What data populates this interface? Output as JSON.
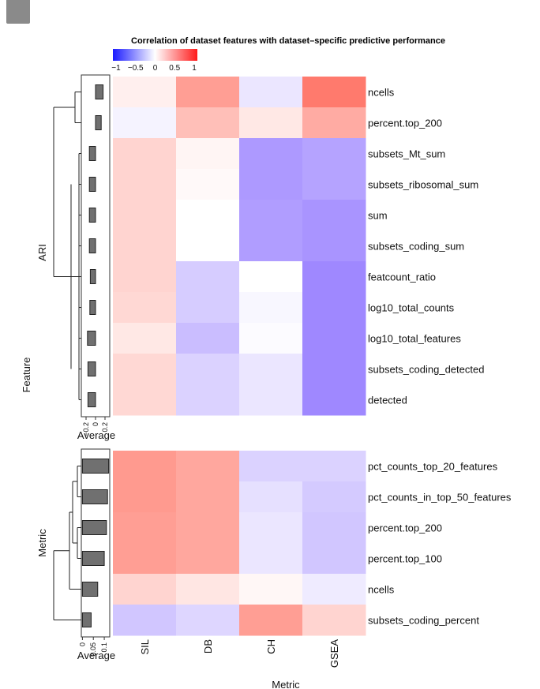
{
  "chart_data": {
    "type": "heatmap",
    "title": "Correlation of dataset features with dataset–specific predictive performance",
    "legend": {
      "ticks": [
        "−1",
        "−0.5",
        "0",
        "0.5",
        "1"
      ],
      "range": [
        -1,
        1
      ],
      "colors": {
        "low": "#1a1aff",
        "mid": "#ffffff",
        "high": "#ff1a1a"
      }
    },
    "columns": [
      "SIL",
      "DB",
      "CH",
      "GSEA"
    ],
    "xlabel": "Metric",
    "ylabel": "Feature",
    "panels": [
      {
        "name": "ARI",
        "rows": [
          {
            "label": "ncells",
            "values": [
              0.08,
              0.5,
              -0.12,
              0.68
            ],
            "average": 0.16
          },
          {
            "label": "percent.top_200",
            "values": [
              -0.06,
              0.33,
              0.12,
              0.43
            ],
            "average": 0.12
          },
          {
            "label": "subsets_Mt_sum",
            "values": [
              0.22,
              0.05,
              -0.5,
              -0.45
            ],
            "average": -0.13
          },
          {
            "label": "subsets_ribosomal_sum",
            "values": [
              0.22,
              0.03,
              -0.5,
              -0.45
            ],
            "average": -0.13
          },
          {
            "label": "sum",
            "values": [
              0.22,
              0.0,
              -0.48,
              -0.52
            ],
            "average": -0.13
          },
          {
            "label": "subsets_coding_sum",
            "values": [
              0.22,
              0.0,
              -0.48,
              -0.52
            ],
            "average": -0.13
          },
          {
            "label": "featcount_ratio",
            "values": [
              0.22,
              -0.25,
              0.0,
              -0.58
            ],
            "average": -0.11
          },
          {
            "label": "log10_total_counts",
            "values": [
              0.2,
              -0.25,
              -0.04,
              -0.58
            ],
            "average": -0.12
          },
          {
            "label": "log10_total_features",
            "values": [
              0.12,
              -0.32,
              -0.02,
              -0.58
            ],
            "average": -0.17
          },
          {
            "label": "subsets_coding_detected",
            "values": [
              0.2,
              -0.22,
              -0.12,
              -0.58
            ],
            "average": -0.16
          },
          {
            "label": "detected",
            "values": [
              0.2,
              -0.22,
              -0.12,
              -0.58
            ],
            "average": -0.16
          }
        ],
        "average_axis": {
          "ticks": [
            "−0.2",
            "0",
            "0.2"
          ],
          "range": [
            -0.3,
            0.3
          ],
          "label": "Average"
        }
      },
      {
        "name": "Metric",
        "rows": [
          {
            "label": "pct_counts_top_20_features",
            "values": [
              0.52,
              0.45,
              -0.22,
              -0.22
            ],
            "average": 0.12
          },
          {
            "label": "pct_counts_in_top_50_features",
            "values": [
              0.52,
              0.45,
              -0.15,
              -0.26
            ],
            "average": 0.115
          },
          {
            "label": "percent.top_200",
            "values": [
              0.5,
              0.45,
              -0.12,
              -0.28
            ],
            "average": 0.11
          },
          {
            "label": "percent.top_100",
            "values": [
              0.5,
              0.45,
              -0.12,
              -0.28
            ],
            "average": 0.1
          },
          {
            "label": "ncells",
            "values": [
              0.22,
              0.13,
              0.04,
              -0.1
            ],
            "average": 0.07
          },
          {
            "label": "subsets_coding_percent",
            "values": [
              -0.28,
              -0.2,
              0.5,
              0.22
            ],
            "average": 0.04
          }
        ],
        "average_axis": {
          "ticks": [
            "0",
            "0.05",
            "0.1"
          ],
          "range": [
            -0.005,
            0.125
          ],
          "label": "Average"
        }
      }
    ]
  }
}
